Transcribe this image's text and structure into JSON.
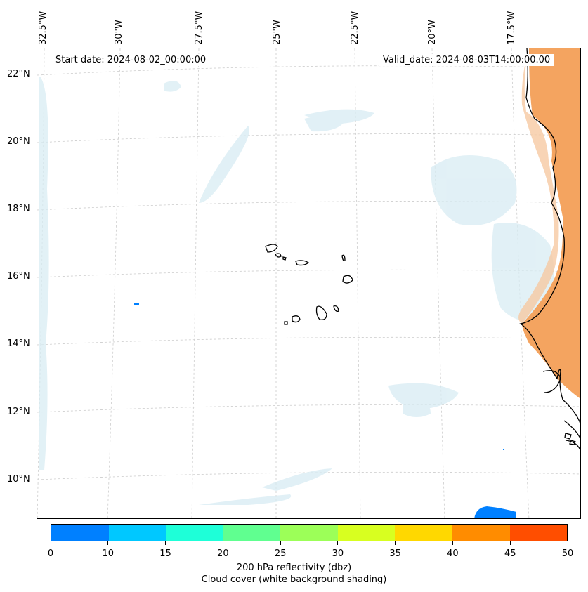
{
  "map": {
    "start_date_label": "Start date: 2024-08-02_00:00:00",
    "valid_date_label": "Valid_date: 2024-08-03T14:00:00.00",
    "longitude_labels": [
      "32.5°W",
      "30°W",
      "27.5°W",
      "25°W",
      "22.5°W",
      "20°W",
      "17.5°W"
    ],
    "latitude_labels": [
      "22°N",
      "20°N",
      "18°N",
      "16°N",
      "14°N",
      "12°N",
      "10°N"
    ],
    "colors": {
      "land_dust": "#f4a460",
      "cloud_shade": "#d8ecf3",
      "reflectivity_low": "#0080ff",
      "coastline": "#000000",
      "gridline": "#cccccc"
    }
  },
  "colorbar": {
    "ticks": [
      "0",
      "10",
      "15",
      "20",
      "25",
      "30",
      "35",
      "40",
      "45",
      "50"
    ],
    "colors": [
      "#0080ff",
      "#00c8ff",
      "#1effd8",
      "#60ff90",
      "#9cff58",
      "#d8ff20",
      "#ffd800",
      "#ff8c00",
      "#ff4e00"
    ],
    "label_line1": "200 hPa reflectivity (dbz)",
    "label_line2": "Cloud cover (white background shading)"
  }
}
